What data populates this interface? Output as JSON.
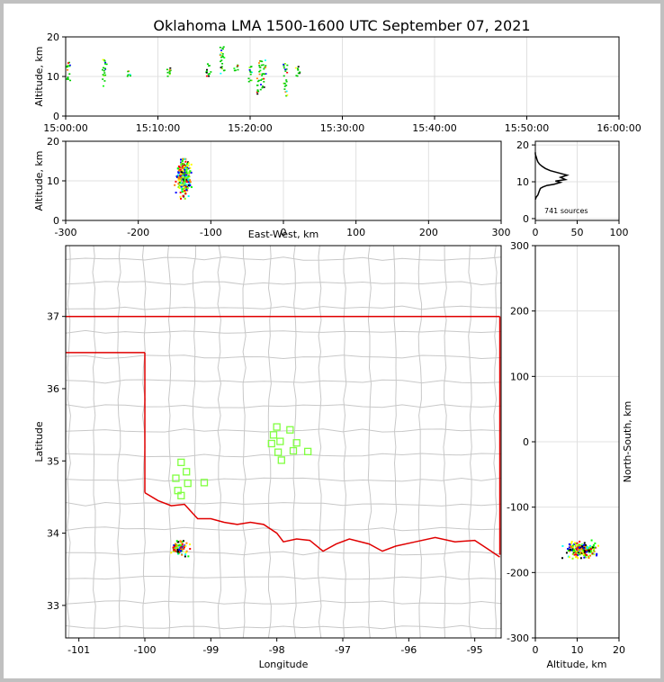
{
  "title": "Oklahoma LMA 1500-1600 UTC September 07, 2021",
  "colors": {
    "state_border": "#e00000",
    "county_line": "#c8c8c8",
    "station_marker": "#80ff40",
    "grid": "#e0e0e0",
    "histogram": "#000000"
  },
  "chart_data": [
    {
      "id": "time-altitude",
      "type": "scatter",
      "ylabel": "Altitude, km",
      "xlabel": "",
      "x_tick_labels": [
        "15:00:00",
        "15:10:00",
        "15:20:00",
        "15:30:00",
        "15:40:00",
        "15:50:00",
        "16:00:00"
      ],
      "x_range_minutes": [
        0,
        60
      ],
      "y_ticks": [
        0,
        10,
        20
      ],
      "ylim": [
        0,
        20
      ],
      "source_columns": [
        {
          "t": 0.3,
          "zmin": 8,
          "zmax": 13.5
        },
        {
          "t": 4.2,
          "zmin": 7.5,
          "zmax": 14.5
        },
        {
          "t": 6.8,
          "zmin": 10,
          "zmax": 11.5
        },
        {
          "t": 11.2,
          "zmin": 10,
          "zmax": 12.5
        },
        {
          "t": 15.5,
          "zmin": 9.5,
          "zmax": 14
        },
        {
          "t": 17,
          "zmin": 9,
          "zmax": 17.5
        },
        {
          "t": 18.5,
          "zmin": 11,
          "zmax": 13
        },
        {
          "t": 20,
          "zmin": 8.5,
          "zmax": 12.5
        },
        {
          "t": 21,
          "zmin": 5.5,
          "zmax": 14
        },
        {
          "t": 21.5,
          "zmin": 7,
          "zmax": 14.5
        },
        {
          "t": 23.8,
          "zmin": 5,
          "zmax": 13.5
        },
        {
          "t": 25.2,
          "zmin": 10,
          "zmax": 12.5
        }
      ]
    },
    {
      "id": "eastwest-altitude",
      "type": "scatter",
      "xlabel": "East-West, km",
      "ylabel": "Altitude, km",
      "x_ticks": [
        -300,
        -200,
        -100,
        0,
        100,
        200,
        300
      ],
      "xlim": [
        -300,
        300
      ],
      "y_ticks": [
        0,
        10,
        20
      ],
      "ylim": [
        0,
        20
      ],
      "cluster": {
        "x_center": -138,
        "x_spread": 10,
        "z_min": 5.5,
        "z_max": 15.5,
        "z_peak": 11
      }
    },
    {
      "id": "altitude-histogram",
      "type": "line",
      "xlabel": "",
      "ylabel": "",
      "x_ticks": [
        0,
        50,
        100
      ],
      "xlim": [
        0,
        100
      ],
      "y_ticks": [
        0,
        10,
        20
      ],
      "ylim": [
        0,
        20
      ],
      "annotation": "741 sources",
      "profile": [
        [
          0,
          5.2
        ],
        [
          1,
          5.8
        ],
        [
          3,
          6.4
        ],
        [
          4,
          7.0
        ],
        [
          5,
          7.6
        ],
        [
          6,
          8.2
        ],
        [
          9,
          8.6
        ],
        [
          14,
          9.0
        ],
        [
          22,
          9.3
        ],
        [
          30,
          9.8
        ],
        [
          24,
          10.2
        ],
        [
          36,
          10.6
        ],
        [
          30,
          11.2
        ],
        [
          38,
          11.8
        ],
        [
          28,
          12.4
        ],
        [
          18,
          13.0
        ],
        [
          12,
          13.6
        ],
        [
          8,
          14.2
        ],
        [
          5,
          14.8
        ],
        [
          3,
          15.4
        ],
        [
          2,
          16.0
        ],
        [
          1,
          16.8
        ],
        [
          0,
          17.5
        ],
        [
          0,
          18
        ]
      ]
    },
    {
      "id": "plan-view-map",
      "type": "scatter",
      "xlabel": "Longitude",
      "ylabel": "Latitude",
      "x_ticks": [
        -101,
        -100,
        -99,
        -98,
        -97,
        -96,
        -95
      ],
      "xlim": [
        -101.2,
        -94.6
      ],
      "y_ticks": [
        33,
        34,
        35,
        36,
        37
      ],
      "ylim": [
        32.55,
        37.98
      ],
      "stations": [
        [
          -98.0,
          35.47
        ],
        [
          -97.8,
          35.43
        ],
        [
          -98.05,
          35.36
        ],
        [
          -97.95,
          35.27
        ],
        [
          -98.08,
          35.24
        ],
        [
          -97.7,
          35.25
        ],
        [
          -97.98,
          35.12
        ],
        [
          -97.75,
          35.14
        ],
        [
          -97.53,
          35.13
        ],
        [
          -97.93,
          35.01
        ],
        [
          -99.45,
          34.98
        ],
        [
          -99.37,
          34.85
        ],
        [
          -99.53,
          34.76
        ],
        [
          -99.35,
          34.69
        ],
        [
          -99.1,
          34.7
        ],
        [
          -99.5,
          34.59
        ],
        [
          -99.45,
          34.52
        ]
      ],
      "flash": {
        "lon_center": -99.45,
        "lat_center": 33.79,
        "lon_spread": 0.12,
        "lat_spread": 0.09
      }
    },
    {
      "id": "altitude-northsouth",
      "type": "scatter",
      "xlabel": "Altitude, km",
      "ylabel": "North-South, km",
      "x_ticks": [
        0,
        10,
        20
      ],
      "xlim": [
        0,
        20
      ],
      "y_ticks": [
        -300,
        -200,
        -100,
        0,
        100,
        200,
        300
      ],
      "ylim": [
        -300,
        300
      ],
      "cluster": {
        "z_center": 11,
        "z_spread": 5,
        "y_center": -165,
        "y_spread": 12
      }
    }
  ]
}
